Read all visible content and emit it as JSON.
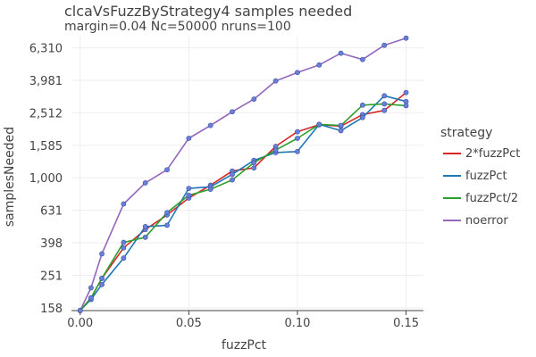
{
  "title_line1": "clcaVsFuzzByStrategy4 samples needed",
  "title_line2": "margin=0.04 Nc=50000 nruns=100",
  "chart_data": {
    "type": "line",
    "xlabel": "fuzzPct",
    "ylabel": "samplesNeeded",
    "yscale": "log",
    "xlim": [
      -0.004,
      0.158
    ],
    "ylim": [
      152,
      7500
    ],
    "grid": true,
    "legend_title": "strategy",
    "legend_placement": "right",
    "x_ticks": [
      0.0,
      0.05,
      0.1,
      0.15
    ],
    "x_tick_labels": [
      "0.00",
      "0.05",
      "0.10",
      "0.15"
    ],
    "y_ticks": [
      158,
      251,
      398,
      631,
      1000,
      1585,
      2512,
      3981,
      6310
    ],
    "y_tick_labels": [
      "158",
      "251",
      "398",
      "631",
      "1,000",
      "1,585",
      "2,512",
      "3,981",
      "6,310"
    ],
    "x": [
      0.0,
      0.005,
      0.01,
      0.02,
      0.03,
      0.04,
      0.05,
      0.06,
      0.07,
      0.08,
      0.09,
      0.1,
      0.11,
      0.12,
      0.13,
      0.14,
      0.15
    ],
    "series": [
      {
        "name": "2*fuzzPct",
        "color": "#d62728",
        "values": [
          152,
          182,
          240,
          370,
          480,
          590,
          750,
          900,
          1100,
          1150,
          1560,
          1920,
          2120,
          2080,
          2450,
          2600,
          3350
        ]
      },
      {
        "name": "fuzzPct",
        "color": "#1f77b4",
        "values": [
          152,
          178,
          220,
          320,
          500,
          510,
          860,
          880,
          1050,
          1280,
          1430,
          1450,
          2130,
          1950,
          2350,
          3200,
          2950
        ]
      },
      {
        "name": "fuzzPct/2",
        "color": "#2ca02c",
        "values": [
          152,
          182,
          240,
          400,
          430,
          610,
          780,
          850,
          970,
          1240,
          1480,
          1750,
          2130,
          2100,
          2800,
          2850,
          2780
        ]
      },
      {
        "name": "noerror",
        "color": "#9467bd",
        "values": [
          152,
          210,
          340,
          690,
          930,
          1120,
          1750,
          2100,
          2550,
          3050,
          3950,
          4450,
          4950,
          5850,
          5350,
          6550,
          7250
        ]
      }
    ]
  }
}
